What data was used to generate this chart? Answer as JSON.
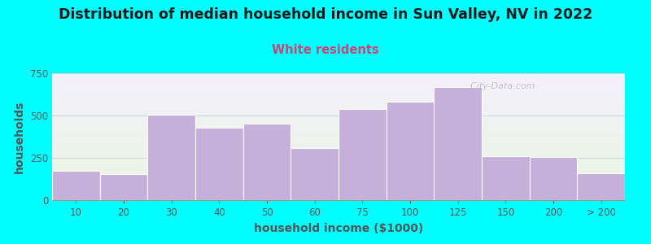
{
  "title": "Distribution of median household income in Sun Valley, NV in 2022",
  "subtitle": "White residents",
  "xlabel": "household income ($1000)",
  "ylabel": "households",
  "background_outer": "#00FFFF",
  "bar_color": "#c4b0d8",
  "bar_edge_color": "#ffffff",
  "categories": [
    "10",
    "20",
    "30",
    "40",
    "50",
    "60",
    "75",
    "100",
    "125",
    "150",
    "200",
    "> 200"
  ],
  "values": [
    175,
    155,
    505,
    430,
    450,
    310,
    540,
    580,
    670,
    260,
    255,
    160
  ],
  "ylim": [
    0,
    750
  ],
  "yticks": [
    0,
    250,
    500,
    750
  ],
  "title_fontsize": 12.5,
  "subtitle_fontsize": 10.5,
  "subtitle_color": "#cc4477",
  "axis_label_fontsize": 10,
  "tick_fontsize": 8.5,
  "tick_color": "#555555",
  "watermark": "  City-Data.com",
  "grad_top": "#e8f5e0",
  "grad_bottom": "#f4f0fc"
}
